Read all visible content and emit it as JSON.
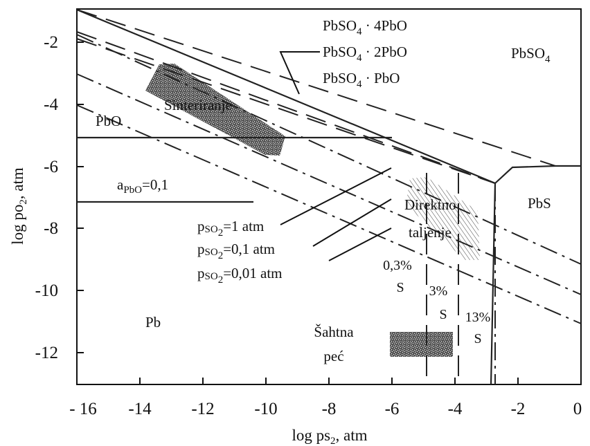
{
  "axes": {
    "xlabel": "log ps",
    "xlabel_sub": "2",
    "xlabel_unit": ", atm",
    "ylabel": "log po",
    "ylabel_sub": "2",
    "ylabel_unit": ", atm",
    "xticks": [
      "- 16",
      "-14",
      "-12",
      "-10",
      "-8",
      "-6",
      "-4",
      "-2",
      "0"
    ],
    "yticks": [
      "-2",
      "-4",
      "-6",
      "-8",
      "-10",
      "-12"
    ]
  },
  "phases": {
    "pbso4": "PbSO",
    "pbso4_sub": "4",
    "pbo": "PbO",
    "pb": "Pb",
    "pbs": "PbS"
  },
  "basic_sulfates": {
    "s1_main": "PbSO",
    "s1_sub": "4",
    "s1_rest": " · 4PbO",
    "s2_main": "PbSO",
    "s2_sub": "4",
    "s2_rest": " · 2PbO",
    "s3_main": "PbSO",
    "s3_sub": "4",
    "s3_rest": " · PbO"
  },
  "activity": {
    "a": "a",
    "sub": "PbO",
    "rest": "=0,1"
  },
  "pressures": {
    "p1_a": "p",
    "p1_sub": "SO",
    "p1_subsub": "2",
    "p1_rest": "=1 atm",
    "p2_a": "p",
    "p2_sub": "SO",
    "p2_subsub": "2",
    "p2_rest": "=0,1 atm",
    "p3_a": "p",
    "p3_sub": "SO",
    "p3_subsub": "2",
    "p3_rest": "=0,01 atm"
  },
  "processes": {
    "sinter": "Sinteriranje",
    "direct1": "Direktno",
    "direct2": "taljenje",
    "shaft1": "Šahtna",
    "shaft2": "peć"
  },
  "sulfur": {
    "s03": "0,3%",
    "s3": "3%",
    "s13": "13%",
    "s": "S"
  }
}
